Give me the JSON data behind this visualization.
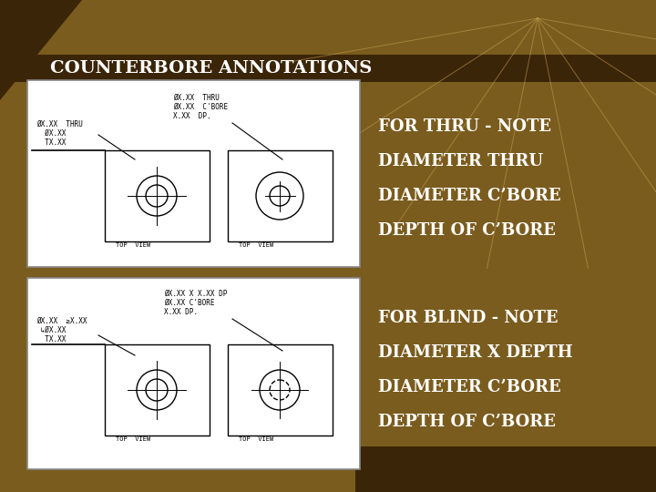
{
  "bg_color": "#7A5C1E",
  "bg_dark": "#3B2508",
  "bg_medium": "#6B5018",
  "title": "COUNTERBORE ANNOTATIONS",
  "title_color": "#FFFFFF",
  "title_fontsize": 14,
  "text_color": "#FFFFFF",
  "right_texts_top": [
    "FOR THRU - NOTE",
    "DIAMETER THRU",
    "DIAMETER C’BORE",
    "DEPTH OF C’BORE"
  ],
  "right_texts_bottom": [
    "FOR BLIND - NOTE",
    "DIAMETER X DEPTH",
    "DIAMETER C’BORE",
    "DEPTH OF C’BORE"
  ],
  "font_size_items": 13,
  "deco_color": "#C8A050"
}
